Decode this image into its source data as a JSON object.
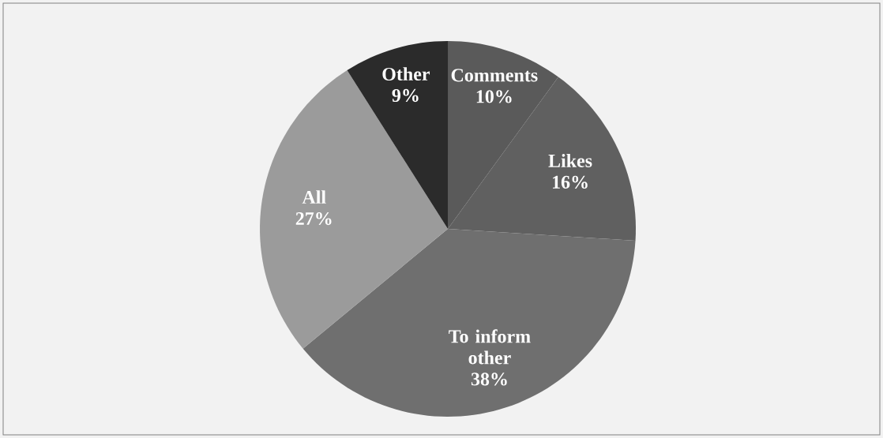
{
  "chart_data": {
    "type": "pie",
    "categories": [
      "Comments",
      "Likes",
      "To inform other",
      "All",
      "Other"
    ],
    "values": [
      10,
      16,
      38,
      27,
      9
    ],
    "value_labels": [
      "10%",
      "16%",
      "38%",
      "27%",
      "9%"
    ],
    "colors": [
      "#5a5a5a",
      "#606060",
      "#6f6f6f",
      "#9b9b9b",
      "#2b2b2b"
    ]
  }
}
